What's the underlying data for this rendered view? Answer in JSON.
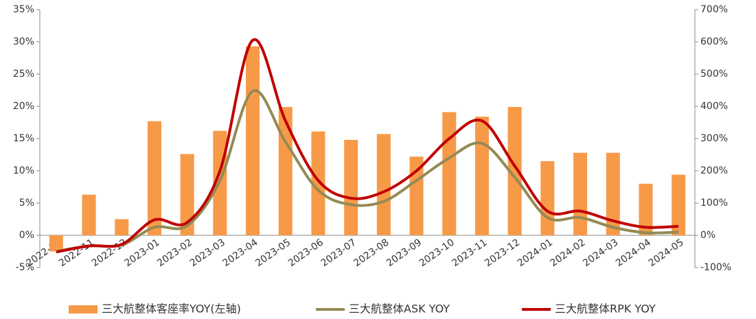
{
  "chart_data": {
    "type": "bar",
    "categories": [
      "2022-10",
      "2022-11",
      "2022-12",
      "2023-01",
      "2023-02",
      "2023-03",
      "2023-04",
      "2023-05",
      "2023-06",
      "2023-07",
      "2023-08",
      "2023-09",
      "2023-10",
      "2023-11",
      "2023-12",
      "2024-01",
      "2024-02",
      "2024-03",
      "2024-04",
      "2024-05"
    ],
    "series": [
      {
        "name": "三大航整体客座率YOY(左轴)",
        "type": "bar",
        "color": "#f79a48",
        "values": [
          -2.5,
          6.3,
          2.5,
          17.7,
          12.6,
          16.2,
          29.3,
          19.9,
          16.1,
          14.8,
          15.7,
          12.2,
          19.1,
          18.4,
          19.9,
          11.5,
          12.8,
          12.8,
          8.0,
          9.4
        ]
      },
      {
        "name": "三大航整体ASK YOY",
        "type": "line",
        "axis": "y2",
        "color": "#948a54",
        "values": [
          -50,
          -33,
          -30,
          25,
          30,
          170,
          447,
          290,
          140,
          95,
          105,
          170,
          240,
          285,
          180,
          55,
          55,
          25,
          8,
          10
        ]
      },
      {
        "name": "三大航整体RPK YOY",
        "type": "line",
        "axis": "y2",
        "color": "#c00000",
        "values": [
          -52,
          -33,
          -28,
          48,
          40,
          200,
          605,
          355,
          170,
          115,
          135,
          200,
          300,
          355,
          215,
          75,
          75,
          45,
          25,
          28
        ]
      }
    ],
    "ylim": [
      -5,
      35
    ],
    "yticks": [
      {
        "value": -5,
        "label": "-5%"
      },
      {
        "value": 0,
        "label": "0%"
      },
      {
        "value": 5,
        "label": "5%"
      },
      {
        "value": 10,
        "label": "10%"
      },
      {
        "value": 15,
        "label": "15%"
      },
      {
        "value": 20,
        "label": "20%"
      },
      {
        "value": 25,
        "label": "25%"
      },
      {
        "value": 30,
        "label": "30%"
      },
      {
        "value": 35,
        "label": "35%"
      }
    ],
    "y2lim": [
      -100,
      700
    ],
    "y2ticks": [
      {
        "value": -100,
        "label": "-100%"
      },
      {
        "value": 0,
        "label": "0%"
      },
      {
        "value": 100,
        "label": "100%"
      },
      {
        "value": 200,
        "label": "200%"
      },
      {
        "value": 300,
        "label": "300%"
      },
      {
        "value": 400,
        "label": "400%"
      },
      {
        "value": 500,
        "label": "500%"
      },
      {
        "value": 600,
        "label": "600%"
      },
      {
        "value": 700,
        "label": "700%"
      }
    ],
    "legend": "bottom"
  }
}
